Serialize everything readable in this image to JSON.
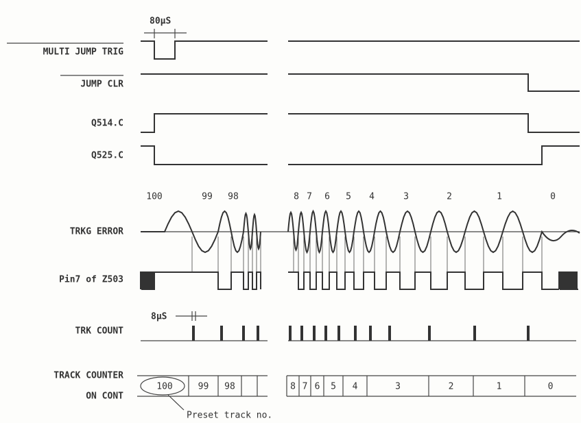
{
  "annotations": {
    "pulse_width": "80μS",
    "count_width": "8μS",
    "preset": "Preset track no."
  },
  "signals": [
    {
      "label": "MULTI JUMP TRIG"
    },
    {
      "label": "JUMP CLR"
    },
    {
      "label": "Q514.C"
    },
    {
      "label": "Q525.C"
    },
    {
      "label": "TRKG ERROR"
    },
    {
      "label": "Pin7 of Z503"
    },
    {
      "label": "TRK COUNT"
    }
  ],
  "counter_label": [
    "TRACK COUNTER",
    "ON CONT"
  ],
  "track_numbers": [
    "100",
    "99",
    "98",
    "8",
    "7",
    "6",
    "5",
    "4",
    "3",
    "2",
    "1",
    "0"
  ],
  "counter_cells": [
    "100",
    "99",
    "98",
    "8",
    "7",
    "6",
    "5",
    "4",
    "3",
    "2",
    "1",
    "0"
  ]
}
